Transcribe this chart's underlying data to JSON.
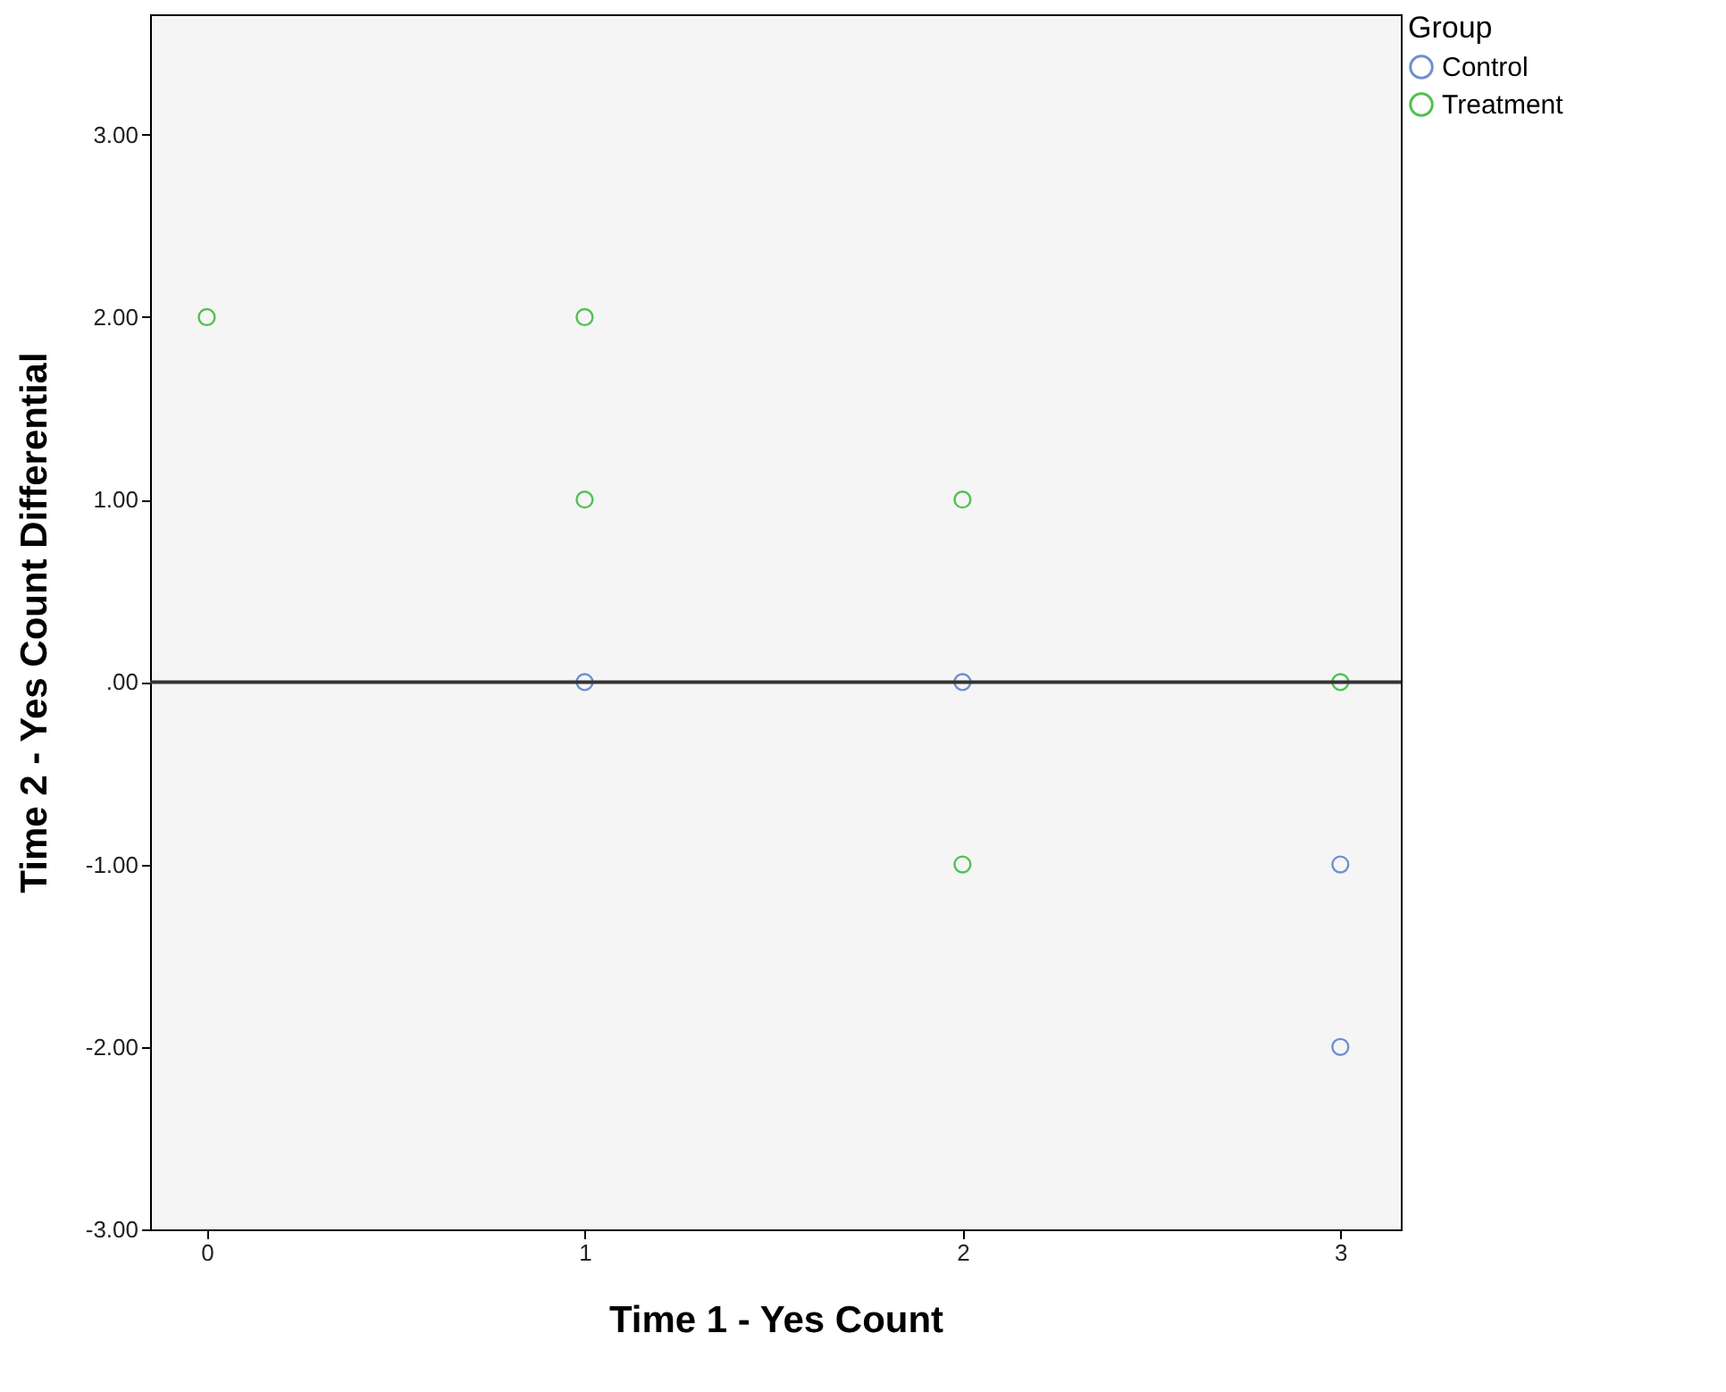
{
  "chart_data": {
    "type": "scatter",
    "xlabel": "Time 1 - Yes Count",
    "ylabel": "Time 2 - Yes Count Differential",
    "legend_title": "Group",
    "legend": "top right",
    "marker": "circle",
    "grid": false,
    "xlim": [
      -0.15,
      3.16
    ],
    "xticks": [
      0,
      1,
      2,
      3
    ],
    "ylim": [
      -3,
      3.66
    ],
    "yticks": [
      {
        "value": 3,
        "label": "3.00"
      },
      {
        "value": 2,
        "label": "2.00"
      },
      {
        "value": 1,
        "label": "1.00"
      },
      {
        "value": 0,
        "label": ".00"
      },
      {
        "value": -1,
        "label": "-1.00"
      },
      {
        "value": -2,
        "label": "-2.00"
      },
      {
        "value": -3,
        "label": "-3.00"
      }
    ],
    "ref_lines": [
      {
        "axis": "y",
        "value": 0,
        "color": "#333333"
      }
    ],
    "series": [
      {
        "name": "Control",
        "color": "#6f8fd0",
        "x": [
          1,
          2,
          3,
          3
        ],
        "values": [
          0,
          0,
          -1,
          -2
        ]
      },
      {
        "name": "Treatment",
        "color": "#4fc24f",
        "x": [
          0,
          1,
          1,
          2,
          2,
          3
        ],
        "values": [
          2,
          2,
          1,
          1,
          -1,
          0
        ]
      }
    ]
  }
}
